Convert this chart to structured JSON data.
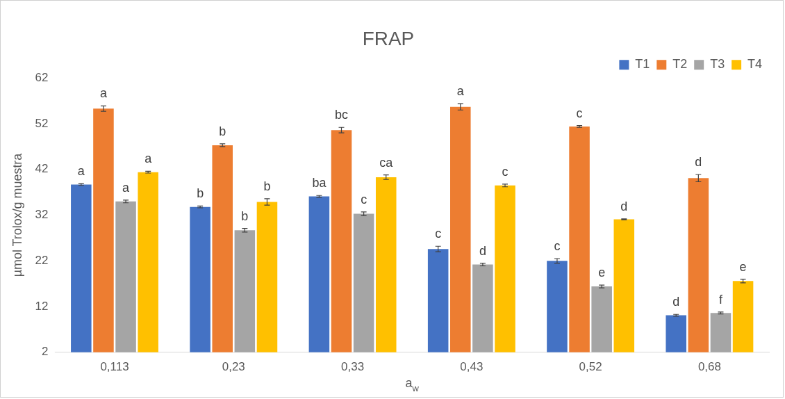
{
  "chart_data": {
    "type": "bar",
    "title": "FRAP",
    "xlabel": "a$_{w}$",
    "ylabel": "µmol Trolox/g muestra",
    "categories": [
      "0,113",
      "0,23",
      "0,33",
      "0,43",
      "0,52",
      "0,68"
    ],
    "ylim": [
      2,
      62
    ],
    "yticks": [
      2,
      12,
      22,
      32,
      42,
      52,
      62
    ],
    "grid": false,
    "legend": "top right",
    "series": [
      {
        "name": "T1",
        "color": "#4472c4",
        "values": [
          38.7,
          33.8,
          36.1,
          24.6,
          22.0,
          10.1
        ],
        "errors": [
          0.2,
          0.2,
          0.2,
          0.6,
          0.5,
          0.2
        ],
        "value_labels": [
          "a",
          "b",
          "ba",
          "c",
          "c",
          "d"
        ]
      },
      {
        "name": "T2",
        "color": "#ed7d31",
        "values": [
          55.3,
          47.3,
          50.6,
          55.7,
          51.4,
          40.1
        ],
        "errors": [
          0.6,
          0.3,
          0.6,
          0.7,
          0.2,
          0.8
        ],
        "value_labels": [
          "a",
          "b",
          "bc",
          "a",
          "c",
          "d"
        ]
      },
      {
        "name": "T3",
        "color": "#a5a5a5",
        "values": [
          35.0,
          28.7,
          32.3,
          21.2,
          16.4,
          10.6
        ],
        "errors": [
          0.3,
          0.4,
          0.4,
          0.3,
          0.3,
          0.2
        ],
        "value_labels": [
          "a",
          "b",
          "c",
          "d",
          "e",
          "f"
        ]
      },
      {
        "name": "T4",
        "color": "#ffc000",
        "values": [
          41.4,
          34.9,
          40.3,
          38.5,
          31.1,
          17.6
        ],
        "errors": [
          0.2,
          0.7,
          0.5,
          0.3,
          0.1,
          0.4
        ],
        "value_labels": [
          "a",
          "b",
          "ca",
          "c",
          "d",
          "e"
        ]
      }
    ]
  }
}
